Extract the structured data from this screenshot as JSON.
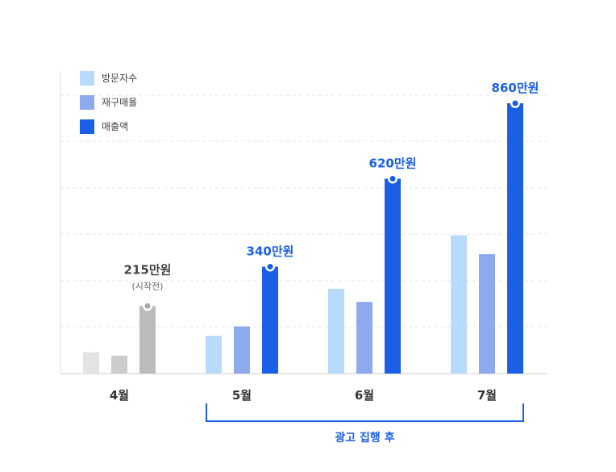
{
  "chart_data": {
    "type": "bar",
    "categories": [
      "4월",
      "5월",
      "6월",
      "7월"
    ],
    "series": [
      {
        "name": "방문자수",
        "values": [
          68,
          120,
          270,
          440
        ]
      },
      {
        "name": "재구매율",
        "values": [
          57,
          150,
          228,
          380
        ]
      },
      {
        "name": "매출액",
        "values": [
          215,
          340,
          620,
          860
        ]
      }
    ],
    "ylim": [
      0,
      960
    ],
    "grid": true,
    "legend_position": "top-left",
    "annotations": [
      {
        "category": "4월",
        "label": "215만원",
        "sublabel": "(시작전)"
      },
      {
        "category": "5월",
        "label": "340만원"
      },
      {
        "category": "6월",
        "label": "620만원"
      },
      {
        "category": "7월",
        "label": "860만원"
      }
    ],
    "bracket": {
      "from": "5월",
      "to": "7월",
      "label": "광고 집행 후"
    }
  },
  "colors": {
    "series": [
      "#b8dafc",
      "#8eaaec",
      "#1a5fe6"
    ],
    "before": [
      "#e3e3e3",
      "#cccccc",
      "#bbbbbb"
    ],
    "before_label": "#444444",
    "highlight_label": "#1a5fe6",
    "grid": "#e6e6e6",
    "axis": "#dddddd"
  }
}
